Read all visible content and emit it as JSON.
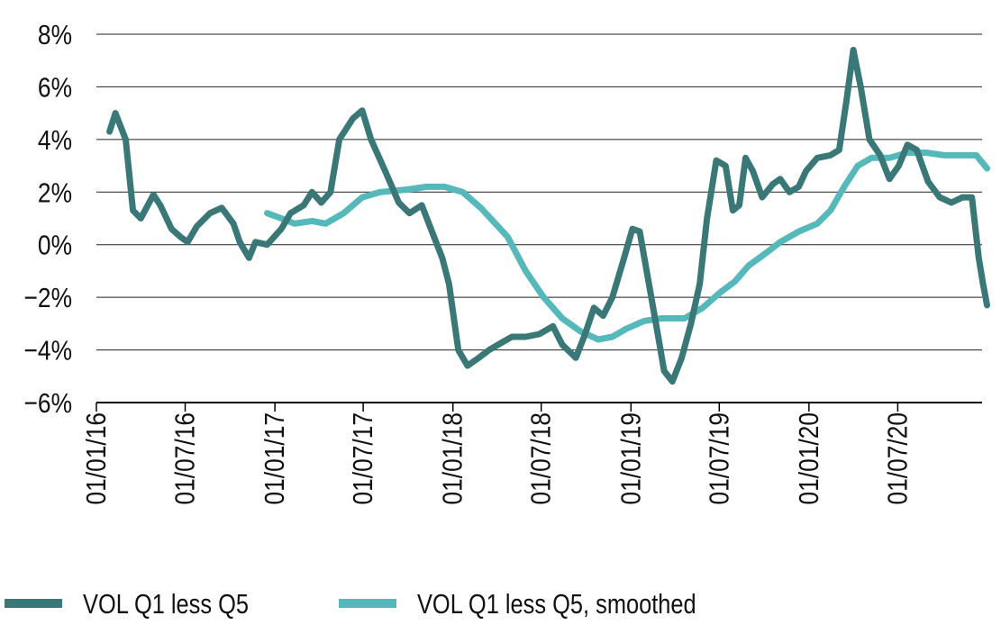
{
  "chart_data": {
    "type": "line",
    "title": "",
    "xlabel": "",
    "ylabel": "",
    "ylim": [
      -6,
      8
    ],
    "xlim": [
      "2016-01-01",
      "2021-01-01"
    ],
    "yticks": [
      -6,
      -4,
      -2,
      0,
      2,
      4,
      6,
      8
    ],
    "ytick_labels": [
      "−6%",
      "−4%",
      "−2%",
      "0%",
      "2%",
      "4%",
      "6%",
      "8%"
    ],
    "xticks": [
      "2016-01-01",
      "2016-07-01",
      "2017-01-01",
      "2017-07-01",
      "2018-01-01",
      "2018-07-01",
      "2019-01-01",
      "2019-07-01",
      "2020-01-01",
      "2020-07-01"
    ],
    "xtick_labels": [
      "01/01/16",
      "01/07/16",
      "01/01/17",
      "01/07/17",
      "01/01/18",
      "01/07/18",
      "01/01/19",
      "01/07/19",
      "01/01/20",
      "01/07/20"
    ],
    "grid": "horizontal",
    "legend_position": "bottom",
    "series": [
      {
        "name": "VOL Q1 less Q5",
        "color": "#3a7878",
        "points": [
          [
            "2016-01-28",
            4.3
          ],
          [
            "2016-02-09",
            5.0
          ],
          [
            "2016-03-01",
            4.0
          ],
          [
            "2016-03-16",
            1.3
          ],
          [
            "2016-04-01",
            1.0
          ],
          [
            "2016-04-27",
            1.9
          ],
          [
            "2016-05-11",
            1.5
          ],
          [
            "2016-06-03",
            0.6
          ],
          [
            "2016-06-21",
            0.3
          ],
          [
            "2016-07-06",
            0.1
          ],
          [
            "2016-07-25",
            0.7
          ],
          [
            "2016-08-21",
            1.2
          ],
          [
            "2016-09-14",
            1.4
          ],
          [
            "2016-10-08",
            0.8
          ],
          [
            "2016-10-21",
            0.1
          ],
          [
            "2016-11-09",
            -0.5
          ],
          [
            "2016-11-22",
            0.1
          ],
          [
            "2016-12-16",
            0.0
          ],
          [
            "2017-01-14",
            0.6
          ],
          [
            "2017-02-02",
            1.2
          ],
          [
            "2017-03-01",
            1.5
          ],
          [
            "2017-03-18",
            2.0
          ],
          [
            "2017-04-06",
            1.6
          ],
          [
            "2017-04-25",
            2.0
          ],
          [
            "2017-05-13",
            4.0
          ],
          [
            "2017-06-10",
            4.8
          ],
          [
            "2017-06-29",
            5.1
          ],
          [
            "2017-07-17",
            4.0
          ],
          [
            "2017-08-15",
            2.8
          ],
          [
            "2017-09-12",
            1.6
          ],
          [
            "2017-10-04",
            1.2
          ],
          [
            "2017-10-29",
            1.5
          ],
          [
            "2017-11-17",
            0.6
          ],
          [
            "2017-12-10",
            -0.5
          ],
          [
            "2017-12-24",
            -1.5
          ],
          [
            "2018-01-12",
            -4.0
          ],
          [
            "2018-01-31",
            -4.6
          ],
          [
            "2018-02-23",
            -4.3
          ],
          [
            "2018-03-16",
            -4.0
          ],
          [
            "2018-04-13",
            -3.7
          ],
          [
            "2018-05-02",
            -3.5
          ],
          [
            "2018-05-30",
            -3.5
          ],
          [
            "2018-06-27",
            -3.4
          ],
          [
            "2018-07-25",
            -3.1
          ],
          [
            "2018-08-13",
            -3.8
          ],
          [
            "2018-09-10",
            -4.3
          ],
          [
            "2018-09-29",
            -3.4
          ],
          [
            "2018-10-17",
            -2.4
          ],
          [
            "2018-11-05",
            -2.7
          ],
          [
            "2018-11-24",
            -2.0
          ],
          [
            "2018-12-18",
            -0.5
          ],
          [
            "2019-01-04",
            0.6
          ],
          [
            "2019-01-19",
            0.5
          ],
          [
            "2019-02-07",
            -1.5
          ],
          [
            "2019-02-26",
            -3.5
          ],
          [
            "2019-03-10",
            -4.8
          ],
          [
            "2019-03-27",
            -5.2
          ],
          [
            "2019-04-15",
            -4.3
          ],
          [
            "2019-05-04",
            -3.0
          ],
          [
            "2019-05-22",
            -1.5
          ],
          [
            "2019-06-06",
            1.0
          ],
          [
            "2019-06-25",
            3.2
          ],
          [
            "2019-07-14",
            3.0
          ],
          [
            "2019-07-29",
            1.3
          ],
          [
            "2019-08-11",
            1.5
          ],
          [
            "2019-08-24",
            3.3
          ],
          [
            "2019-09-08",
            2.8
          ],
          [
            "2019-09-27",
            1.8
          ],
          [
            "2019-10-19",
            2.3
          ],
          [
            "2019-11-03",
            2.5
          ],
          [
            "2019-11-22",
            2.0
          ],
          [
            "2019-12-11",
            2.2
          ],
          [
            "2019-12-26",
            2.8
          ],
          [
            "2020-01-18",
            3.3
          ],
          [
            "2020-02-14",
            3.4
          ],
          [
            "2020-03-03",
            3.6
          ],
          [
            "2020-03-18",
            5.5
          ],
          [
            "2020-04-01",
            7.4
          ],
          [
            "2020-04-16",
            6.0
          ],
          [
            "2020-05-04",
            4.0
          ],
          [
            "2020-05-26",
            3.4
          ],
          [
            "2020-06-14",
            2.5
          ],
          [
            "2020-07-03",
            3.0
          ],
          [
            "2020-07-21",
            3.8
          ],
          [
            "2020-08-09",
            3.6
          ],
          [
            "2020-09-01",
            2.4
          ],
          [
            "2020-09-25",
            1.8
          ],
          [
            "2020-10-19",
            1.6
          ],
          [
            "2020-11-11",
            1.8
          ],
          [
            "2020-11-30",
            1.8
          ],
          [
            "2020-12-14",
            -0.5
          ],
          [
            "2020-12-23",
            -1.5
          ],
          [
            "2020-12-31",
            -2.3
          ]
        ]
      },
      {
        "name": "VOL Q1 less Q5, smoothed",
        "color": "#55b8bb",
        "points": [
          [
            "2016-12-16",
            1.2
          ],
          [
            "2017-01-14",
            1.0
          ],
          [
            "2017-02-10",
            0.8
          ],
          [
            "2017-03-18",
            0.9
          ],
          [
            "2017-04-15",
            0.8
          ],
          [
            "2017-05-22",
            1.2
          ],
          [
            "2017-06-29",
            1.8
          ],
          [
            "2017-08-05",
            2.0
          ],
          [
            "2017-10-01",
            2.1
          ],
          [
            "2017-11-08",
            2.2
          ],
          [
            "2017-12-15",
            2.2
          ],
          [
            "2018-01-21",
            2.0
          ],
          [
            "2018-02-27",
            1.4
          ],
          [
            "2018-04-23",
            0.3
          ],
          [
            "2018-05-30",
            -1.0
          ],
          [
            "2018-07-06",
            -2.0
          ],
          [
            "2018-08-13",
            -2.8
          ],
          [
            "2018-09-20",
            -3.3
          ],
          [
            "2018-10-26",
            -3.6
          ],
          [
            "2018-11-24",
            -3.5
          ],
          [
            "2018-12-22",
            -3.2
          ],
          [
            "2019-01-28",
            -2.9
          ],
          [
            "2019-03-05",
            -2.8
          ],
          [
            "2019-04-21",
            -2.8
          ],
          [
            "2019-05-28",
            -2.4
          ],
          [
            "2019-07-04",
            -1.8
          ],
          [
            "2019-08-02",
            -1.4
          ],
          [
            "2019-08-30",
            -0.8
          ],
          [
            "2019-10-06",
            -0.3
          ],
          [
            "2019-11-03",
            0.1
          ],
          [
            "2019-12-11",
            0.5
          ],
          [
            "2020-01-18",
            0.8
          ],
          [
            "2020-02-14",
            1.3
          ],
          [
            "2020-03-13",
            2.2
          ],
          [
            "2020-04-10",
            3.0
          ],
          [
            "2020-05-08",
            3.3
          ],
          [
            "2020-06-14",
            3.3
          ],
          [
            "2020-07-21",
            3.5
          ],
          [
            "2020-08-28",
            3.5
          ],
          [
            "2020-10-04",
            3.4
          ],
          [
            "2020-11-11",
            3.4
          ],
          [
            "2020-12-09",
            3.4
          ],
          [
            "2020-12-31",
            2.9
          ]
        ]
      }
    ]
  }
}
